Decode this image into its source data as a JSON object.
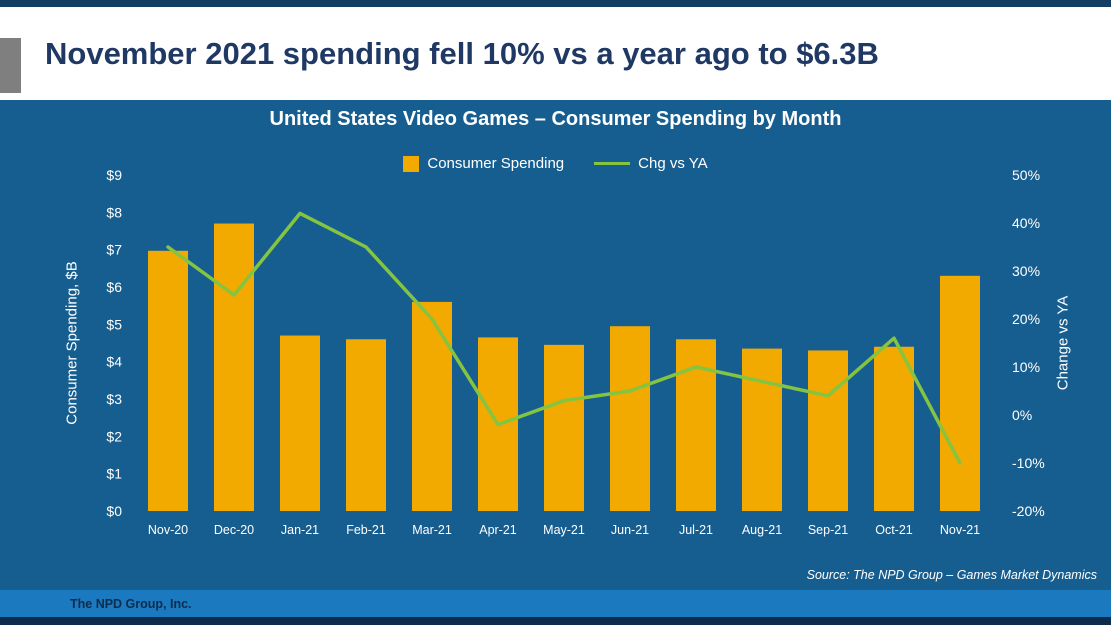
{
  "slide": {
    "title": "November 2021 spending fell 10% vs a year ago to $6.3B",
    "source_note": "Source: The NPD Group – Games Market Dynamics",
    "footer": "The NPD Group, Inc."
  },
  "colors": {
    "background": "#175E90",
    "top_strip": "#123E63",
    "header_bg": "#FFFFFF",
    "title_text": "#1F3864",
    "accent_gray": "#7F7F7F",
    "bar": "#F2A900",
    "line": "#84C441",
    "footer_strip": "#1B79BF",
    "bottom_strip": "#0D2B4B"
  },
  "chart_data": {
    "type": "bar+line",
    "title": "United States Video Games – Consumer Spending by Month",
    "categories": [
      "Nov-20",
      "Dec-20",
      "Jan-21",
      "Feb-21",
      "Mar-21",
      "Apr-21",
      "May-21",
      "Jun-21",
      "Jul-21",
      "Aug-21",
      "Sep-21",
      "Oct-21",
      "Nov-21"
    ],
    "series": [
      {
        "name": "Consumer Spending",
        "type": "bar",
        "axis": "left",
        "unit": "$B",
        "values": [
          6.97,
          7.7,
          4.7,
          4.6,
          5.6,
          4.65,
          4.45,
          4.95,
          4.6,
          4.35,
          4.3,
          4.4,
          6.3
        ]
      },
      {
        "name": "Chg vs YA",
        "type": "line",
        "axis": "right",
        "unit": "%",
        "values": [
          35,
          25,
          42,
          35,
          20,
          -2,
          3,
          5,
          10,
          7,
          4,
          16,
          -10
        ]
      }
    ],
    "left_axis": {
      "label": "Consumer Spending, $B",
      "min": 0,
      "max": 9,
      "tick_labels": [
        "$0",
        "$1",
        "$2",
        "$3",
        "$4",
        "$5",
        "$6",
        "$7",
        "$8",
        "$9"
      ]
    },
    "right_axis": {
      "label": "Change vs YA",
      "min": -20,
      "max": 50,
      "tick_labels": [
        "-20%",
        "-10%",
        "0%",
        "10%",
        "20%",
        "30%",
        "40%",
        "50%"
      ]
    },
    "legend_position": "top-center",
    "grid": false
  }
}
